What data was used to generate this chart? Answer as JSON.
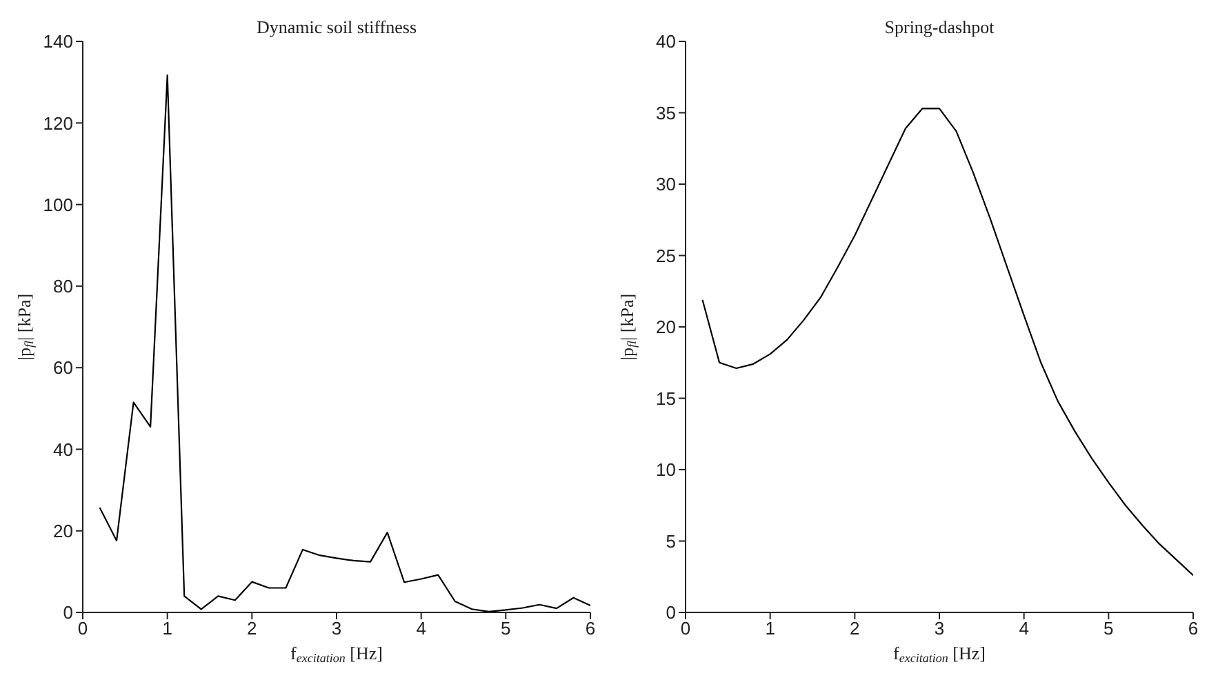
{
  "chart_data": [
    {
      "type": "line",
      "title": "Dynamic soil stiffness",
      "xlabel": "f$_{excitation}$ [Hz]",
      "ylabel": "|p$_{fl}$| [kPa]",
      "color": "#000000",
      "xlim": [
        0,
        6
      ],
      "ylim": [
        0,
        140
      ],
      "xticks": [
        0,
        1,
        2,
        3,
        4,
        5,
        6
      ],
      "yticks": [
        0,
        20,
        40,
        60,
        80,
        100,
        120,
        140
      ],
      "x": [
        0.2,
        0.4,
        0.6,
        0.8,
        1.0,
        1.2,
        1.4,
        1.6,
        1.8,
        2.0,
        2.2,
        2.4,
        2.6,
        2.8,
        3.0,
        3.2,
        3.4,
        3.6,
        3.8,
        4.0,
        4.2,
        4.4,
        4.6,
        4.8,
        5.0,
        5.2,
        5.4,
        5.6,
        5.8,
        6.0
      ],
      "values": [
        25.7,
        17.6,
        51.5,
        45.5,
        131.7,
        4.0,
        0.8,
        4.0,
        3.0,
        7.5,
        6.0,
        6.0,
        15.4,
        14.0,
        13.3,
        12.7,
        12.4,
        19.6,
        7.4,
        8.2,
        9.2,
        2.7,
        0.8,
        0.2,
        0.6,
        1.1,
        1.9,
        1.0,
        3.6,
        1.7
      ]
    },
    {
      "type": "line",
      "title": "Spring-dashpot",
      "xlabel": "f$_{excitation}$ [Hz]",
      "ylabel": "|p$_{fl}$| [kPa]",
      "color": "#000000",
      "xlim": [
        0,
        6
      ],
      "ylim": [
        0,
        40
      ],
      "xticks": [
        0,
        1,
        2,
        3,
        4,
        5,
        6
      ],
      "yticks": [
        0,
        5,
        10,
        15,
        20,
        25,
        30,
        35,
        40
      ],
      "x": [
        0.2,
        0.4,
        0.6,
        0.8,
        1.0,
        1.2,
        1.4,
        1.6,
        1.8,
        2.0,
        2.2,
        2.4,
        2.6,
        2.8,
        3.0,
        3.2,
        3.4,
        3.6,
        3.8,
        4.0,
        4.2,
        4.4,
        4.6,
        4.8,
        5.0,
        5.2,
        5.4,
        5.6,
        5.8,
        6.0
      ],
      "values": [
        21.9,
        17.5,
        17.1,
        17.4,
        18.1,
        19.1,
        20.5,
        22.1,
        24.2,
        26.4,
        28.9,
        31.4,
        33.9,
        35.3,
        35.3,
        33.7,
        30.8,
        27.6,
        24.2,
        20.8,
        17.5,
        14.8,
        12.7,
        10.8,
        9.1,
        7.5,
        6.1,
        4.8,
        3.7,
        2.6
      ]
    }
  ]
}
